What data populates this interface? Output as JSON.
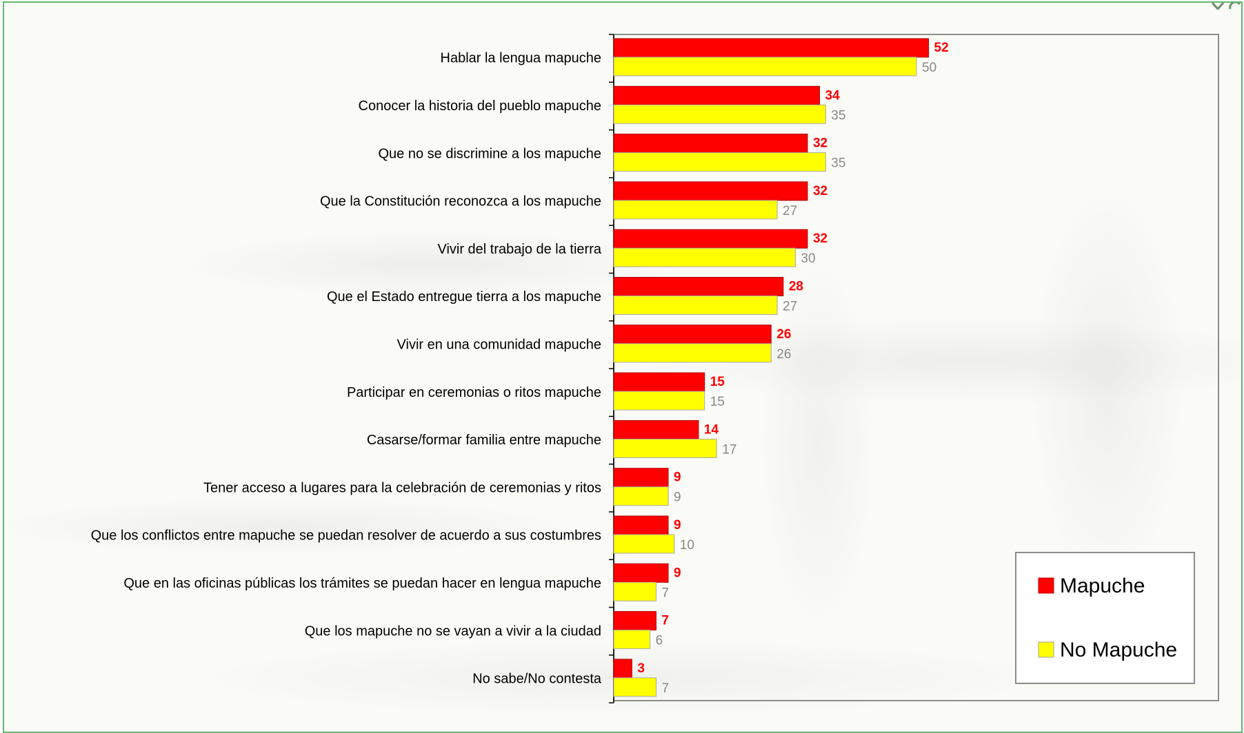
{
  "chart_data": {
    "type": "bar",
    "orientation": "horizontal",
    "categories": [
      "Hablar la lengua mapuche",
      "Conocer la historia del pueblo mapuche",
      "Que no se discrimine a los mapuche",
      "Que la Constitución reconozca a los mapuche",
      "Vivir del trabajo de la tierra",
      "Que el Estado entregue tierra a los mapuche",
      "Vivir en una comunidad mapuche",
      "Participar en ceremonias o ritos mapuche",
      "Casarse/formar familia entre mapuche",
      "Tener acceso a lugares para la celebración de ceremonias y ritos",
      "Que los conflictos entre mapuche se puedan resolver de acuerdo a sus costumbres",
      "Que en las oficinas públicas los trámites se puedan hacer en lengua mapuche",
      "Que los mapuche no se vayan a vivir a la ciudad",
      "No sabe/No contesta"
    ],
    "series": [
      {
        "name": "Mapuche",
        "color": "#ff0000",
        "values": [
          52,
          34,
          32,
          32,
          32,
          28,
          26,
          15,
          14,
          9,
          9,
          9,
          7,
          3
        ]
      },
      {
        "name": "No Mapuche",
        "color": "#ffff00",
        "values": [
          50,
          35,
          35,
          27,
          30,
          27,
          26,
          15,
          17,
          9,
          10,
          7,
          6,
          7
        ]
      }
    ],
    "xlim": [
      0,
      100
    ],
    "grid": false,
    "legend_position": "bottom-right"
  }
}
